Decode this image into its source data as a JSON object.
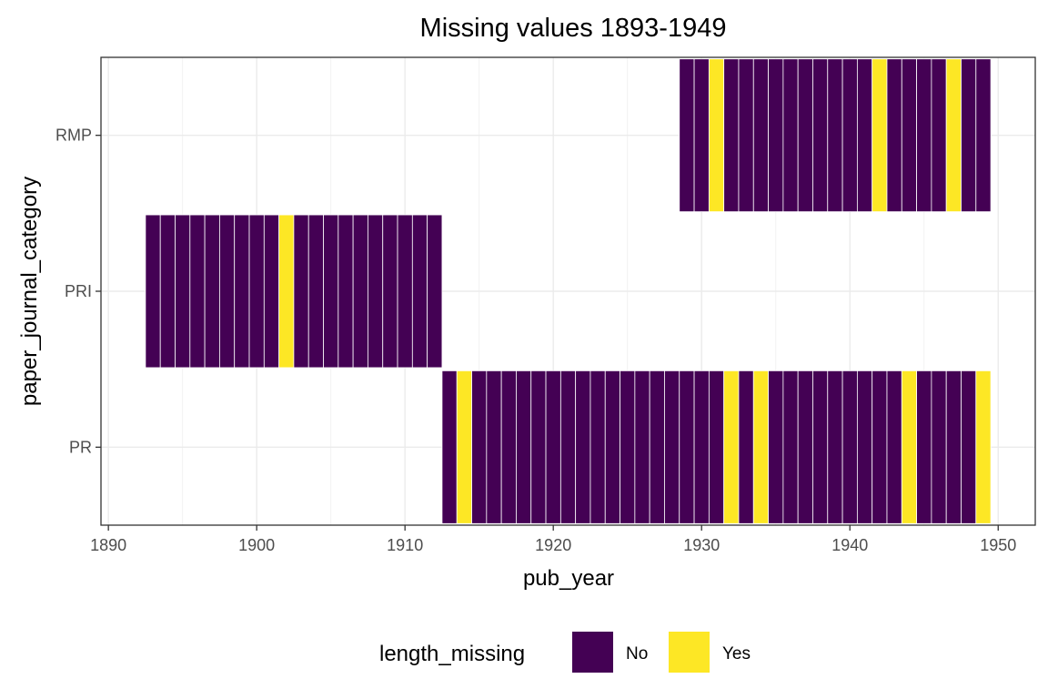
{
  "chart_data": {
    "type": "heatmap",
    "title": "Missing values 1893-1949",
    "xlabel": "pub_year",
    "ylabel": "paper_journal_category",
    "xlim": [
      1889.5,
      1952.5
    ],
    "x_ticks": [
      1890,
      1900,
      1910,
      1920,
      1930,
      1940,
      1950
    ],
    "y_categories": [
      "PR",
      "PRI",
      "RMP"
    ],
    "grid": true,
    "legend": {
      "title": "length_missing",
      "position": "bottom",
      "entries": [
        {
          "label": "No",
          "color": "#440154"
        },
        {
          "label": "Yes",
          "color": "#FDE725"
        }
      ]
    },
    "series": [
      {
        "category": "PRI",
        "year_start": 1893,
        "year_end": 1912,
        "missing_years": [
          1902
        ]
      },
      {
        "category": "PR",
        "year_start": 1913,
        "year_end": 1949,
        "missing_years": [
          1914,
          1932,
          1934,
          1944,
          1949
        ]
      },
      {
        "category": "RMP",
        "year_start": 1929,
        "year_end": 1949,
        "missing_years": [
          1931,
          1942,
          1947
        ]
      }
    ]
  }
}
